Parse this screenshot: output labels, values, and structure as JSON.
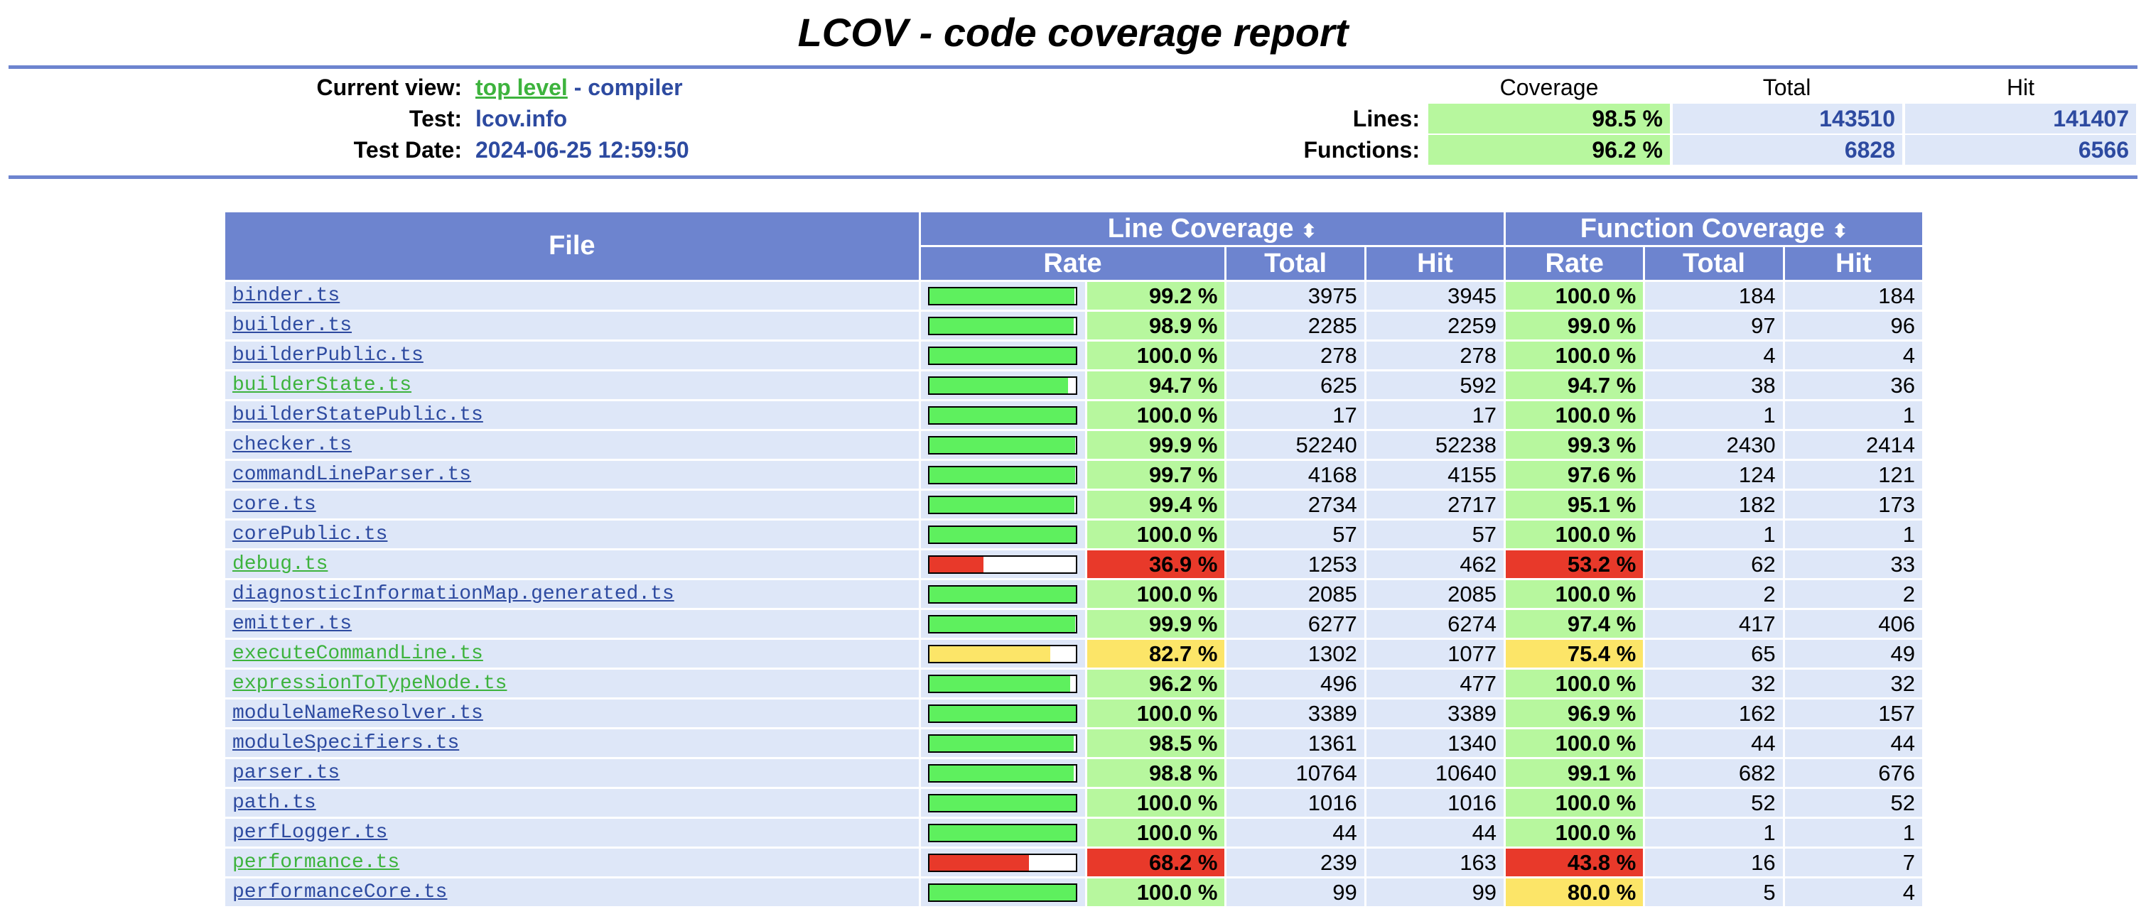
{
  "title": "LCOV - code coverage report",
  "header": {
    "current_view_label": "Current view:",
    "current_view_link": "top level",
    "current_view_sep": " - ",
    "current_view_dir": "compiler",
    "test_label": "Test:",
    "test_value": "lcov.info",
    "date_label": "Test Date:",
    "date_value": "2024-06-25 12:59:50",
    "col_coverage": "Coverage",
    "col_total": "Total",
    "col_hit": "Hit",
    "lines_label": "Lines:",
    "lines_cov": "98.5 %",
    "lines_total": "143510",
    "lines_hit": "141407",
    "functions_label": "Functions:",
    "functions_cov": "96.2 %",
    "functions_total": "6828",
    "functions_hit": "6566"
  },
  "table": {
    "file_header": "File",
    "line_cov_header": "Line Coverage",
    "func_cov_header": "Function Coverage",
    "sort_glyph": "⬍",
    "rate_header": "Rate",
    "total_header": "Total",
    "hit_header": "Hit"
  },
  "colors": {
    "hi": "#b7f79e",
    "med": "#fce568",
    "lo": "#e8392a",
    "bar_hi": "#5ef05e"
  },
  "rows": [
    {
      "file": "binder.ts",
      "modified": false,
      "line_rate": "99.2 %",
      "line_pct": 99.2,
      "line_level": "hi",
      "line_total": "3975",
      "line_hit": "3945",
      "fn_rate": "100.0 %",
      "fn_level": "hi",
      "fn_total": "184",
      "fn_hit": "184"
    },
    {
      "file": "builder.ts",
      "modified": false,
      "line_rate": "98.9 %",
      "line_pct": 98.9,
      "line_level": "hi",
      "line_total": "2285",
      "line_hit": "2259",
      "fn_rate": "99.0 %",
      "fn_level": "hi",
      "fn_total": "97",
      "fn_hit": "96"
    },
    {
      "file": "builderPublic.ts",
      "modified": false,
      "line_rate": "100.0 %",
      "line_pct": 100,
      "line_level": "hi",
      "line_total": "278",
      "line_hit": "278",
      "fn_rate": "100.0 %",
      "fn_level": "hi",
      "fn_total": "4",
      "fn_hit": "4"
    },
    {
      "file": "builderState.ts",
      "modified": true,
      "line_rate": "94.7 %",
      "line_pct": 94.7,
      "line_level": "hi",
      "line_total": "625",
      "line_hit": "592",
      "fn_rate": "94.7 %",
      "fn_level": "hi",
      "fn_total": "38",
      "fn_hit": "36"
    },
    {
      "file": "builderStatePublic.ts",
      "modified": false,
      "line_rate": "100.0 %",
      "line_pct": 100,
      "line_level": "hi",
      "line_total": "17",
      "line_hit": "17",
      "fn_rate": "100.0 %",
      "fn_level": "hi",
      "fn_total": "1",
      "fn_hit": "1"
    },
    {
      "file": "checker.ts",
      "modified": false,
      "line_rate": "99.9 %",
      "line_pct": 99.9,
      "line_level": "hi",
      "line_total": "52240",
      "line_hit": "52238",
      "fn_rate": "99.3 %",
      "fn_level": "hi",
      "fn_total": "2430",
      "fn_hit": "2414"
    },
    {
      "file": "commandLineParser.ts",
      "modified": false,
      "line_rate": "99.7 %",
      "line_pct": 99.7,
      "line_level": "hi",
      "line_total": "4168",
      "line_hit": "4155",
      "fn_rate": "97.6 %",
      "fn_level": "hi",
      "fn_total": "124",
      "fn_hit": "121"
    },
    {
      "file": "core.ts",
      "modified": false,
      "line_rate": "99.4 %",
      "line_pct": 99.4,
      "line_level": "hi",
      "line_total": "2734",
      "line_hit": "2717",
      "fn_rate": "95.1 %",
      "fn_level": "hi",
      "fn_total": "182",
      "fn_hit": "173"
    },
    {
      "file": "corePublic.ts",
      "modified": false,
      "line_rate": "100.0 %",
      "line_pct": 100,
      "line_level": "hi",
      "line_total": "57",
      "line_hit": "57",
      "fn_rate": "100.0 %",
      "fn_level": "hi",
      "fn_total": "1",
      "fn_hit": "1"
    },
    {
      "file": "debug.ts",
      "modified": true,
      "line_rate": "36.9 %",
      "line_pct": 36.9,
      "line_level": "lo",
      "line_total": "1253",
      "line_hit": "462",
      "fn_rate": "53.2 %",
      "fn_level": "lo",
      "fn_total": "62",
      "fn_hit": "33"
    },
    {
      "file": "diagnosticInformationMap.generated.ts",
      "modified": false,
      "line_rate": "100.0 %",
      "line_pct": 100,
      "line_level": "hi",
      "line_total": "2085",
      "line_hit": "2085",
      "fn_rate": "100.0 %",
      "fn_level": "hi",
      "fn_total": "2",
      "fn_hit": "2"
    },
    {
      "file": "emitter.ts",
      "modified": false,
      "line_rate": "99.9 %",
      "line_pct": 99.9,
      "line_level": "hi",
      "line_total": "6277",
      "line_hit": "6274",
      "fn_rate": "97.4 %",
      "fn_level": "hi",
      "fn_total": "417",
      "fn_hit": "406"
    },
    {
      "file": "executeCommandLine.ts",
      "modified": true,
      "line_rate": "82.7 %",
      "line_pct": 82.7,
      "line_level": "med",
      "line_total": "1302",
      "line_hit": "1077",
      "fn_rate": "75.4 %",
      "fn_level": "med",
      "fn_total": "65",
      "fn_hit": "49"
    },
    {
      "file": "expressionToTypeNode.ts",
      "modified": true,
      "line_rate": "96.2 %",
      "line_pct": 96.2,
      "line_level": "hi",
      "line_total": "496",
      "line_hit": "477",
      "fn_rate": "100.0 %",
      "fn_level": "hi",
      "fn_total": "32",
      "fn_hit": "32"
    },
    {
      "file": "moduleNameResolver.ts",
      "modified": false,
      "line_rate": "100.0 %",
      "line_pct": 100,
      "line_level": "hi",
      "line_total": "3389",
      "line_hit": "3389",
      "fn_rate": "96.9 %",
      "fn_level": "hi",
      "fn_total": "162",
      "fn_hit": "157"
    },
    {
      "file": "moduleSpecifiers.ts",
      "modified": false,
      "line_rate": "98.5 %",
      "line_pct": 98.5,
      "line_level": "hi",
      "line_total": "1361",
      "line_hit": "1340",
      "fn_rate": "100.0 %",
      "fn_level": "hi",
      "fn_total": "44",
      "fn_hit": "44"
    },
    {
      "file": "parser.ts",
      "modified": false,
      "line_rate": "98.8 %",
      "line_pct": 98.8,
      "line_level": "hi",
      "line_total": "10764",
      "line_hit": "10640",
      "fn_rate": "99.1 %",
      "fn_level": "hi",
      "fn_total": "682",
      "fn_hit": "676"
    },
    {
      "file": "path.ts",
      "modified": false,
      "line_rate": "100.0 %",
      "line_pct": 100,
      "line_level": "hi",
      "line_total": "1016",
      "line_hit": "1016",
      "fn_rate": "100.0 %",
      "fn_level": "hi",
      "fn_total": "52",
      "fn_hit": "52"
    },
    {
      "file": "perfLogger.ts",
      "modified": false,
      "line_rate": "100.0 %",
      "line_pct": 100,
      "line_level": "hi",
      "line_total": "44",
      "line_hit": "44",
      "fn_rate": "100.0 %",
      "fn_level": "hi",
      "fn_total": "1",
      "fn_hit": "1"
    },
    {
      "file": "performance.ts",
      "modified": true,
      "line_rate": "68.2 %",
      "line_pct": 68.2,
      "line_level": "lo",
      "line_total": "239",
      "line_hit": "163",
      "fn_rate": "43.8 %",
      "fn_level": "lo",
      "fn_total": "16",
      "fn_hit": "7"
    },
    {
      "file": "performanceCore.ts",
      "modified": false,
      "line_rate": "100.0 %",
      "line_pct": 100,
      "line_level": "hi",
      "line_total": "99",
      "line_hit": "99",
      "fn_rate": "80.0 %",
      "fn_level": "med",
      "fn_total": "5",
      "fn_hit": "4"
    }
  ]
}
